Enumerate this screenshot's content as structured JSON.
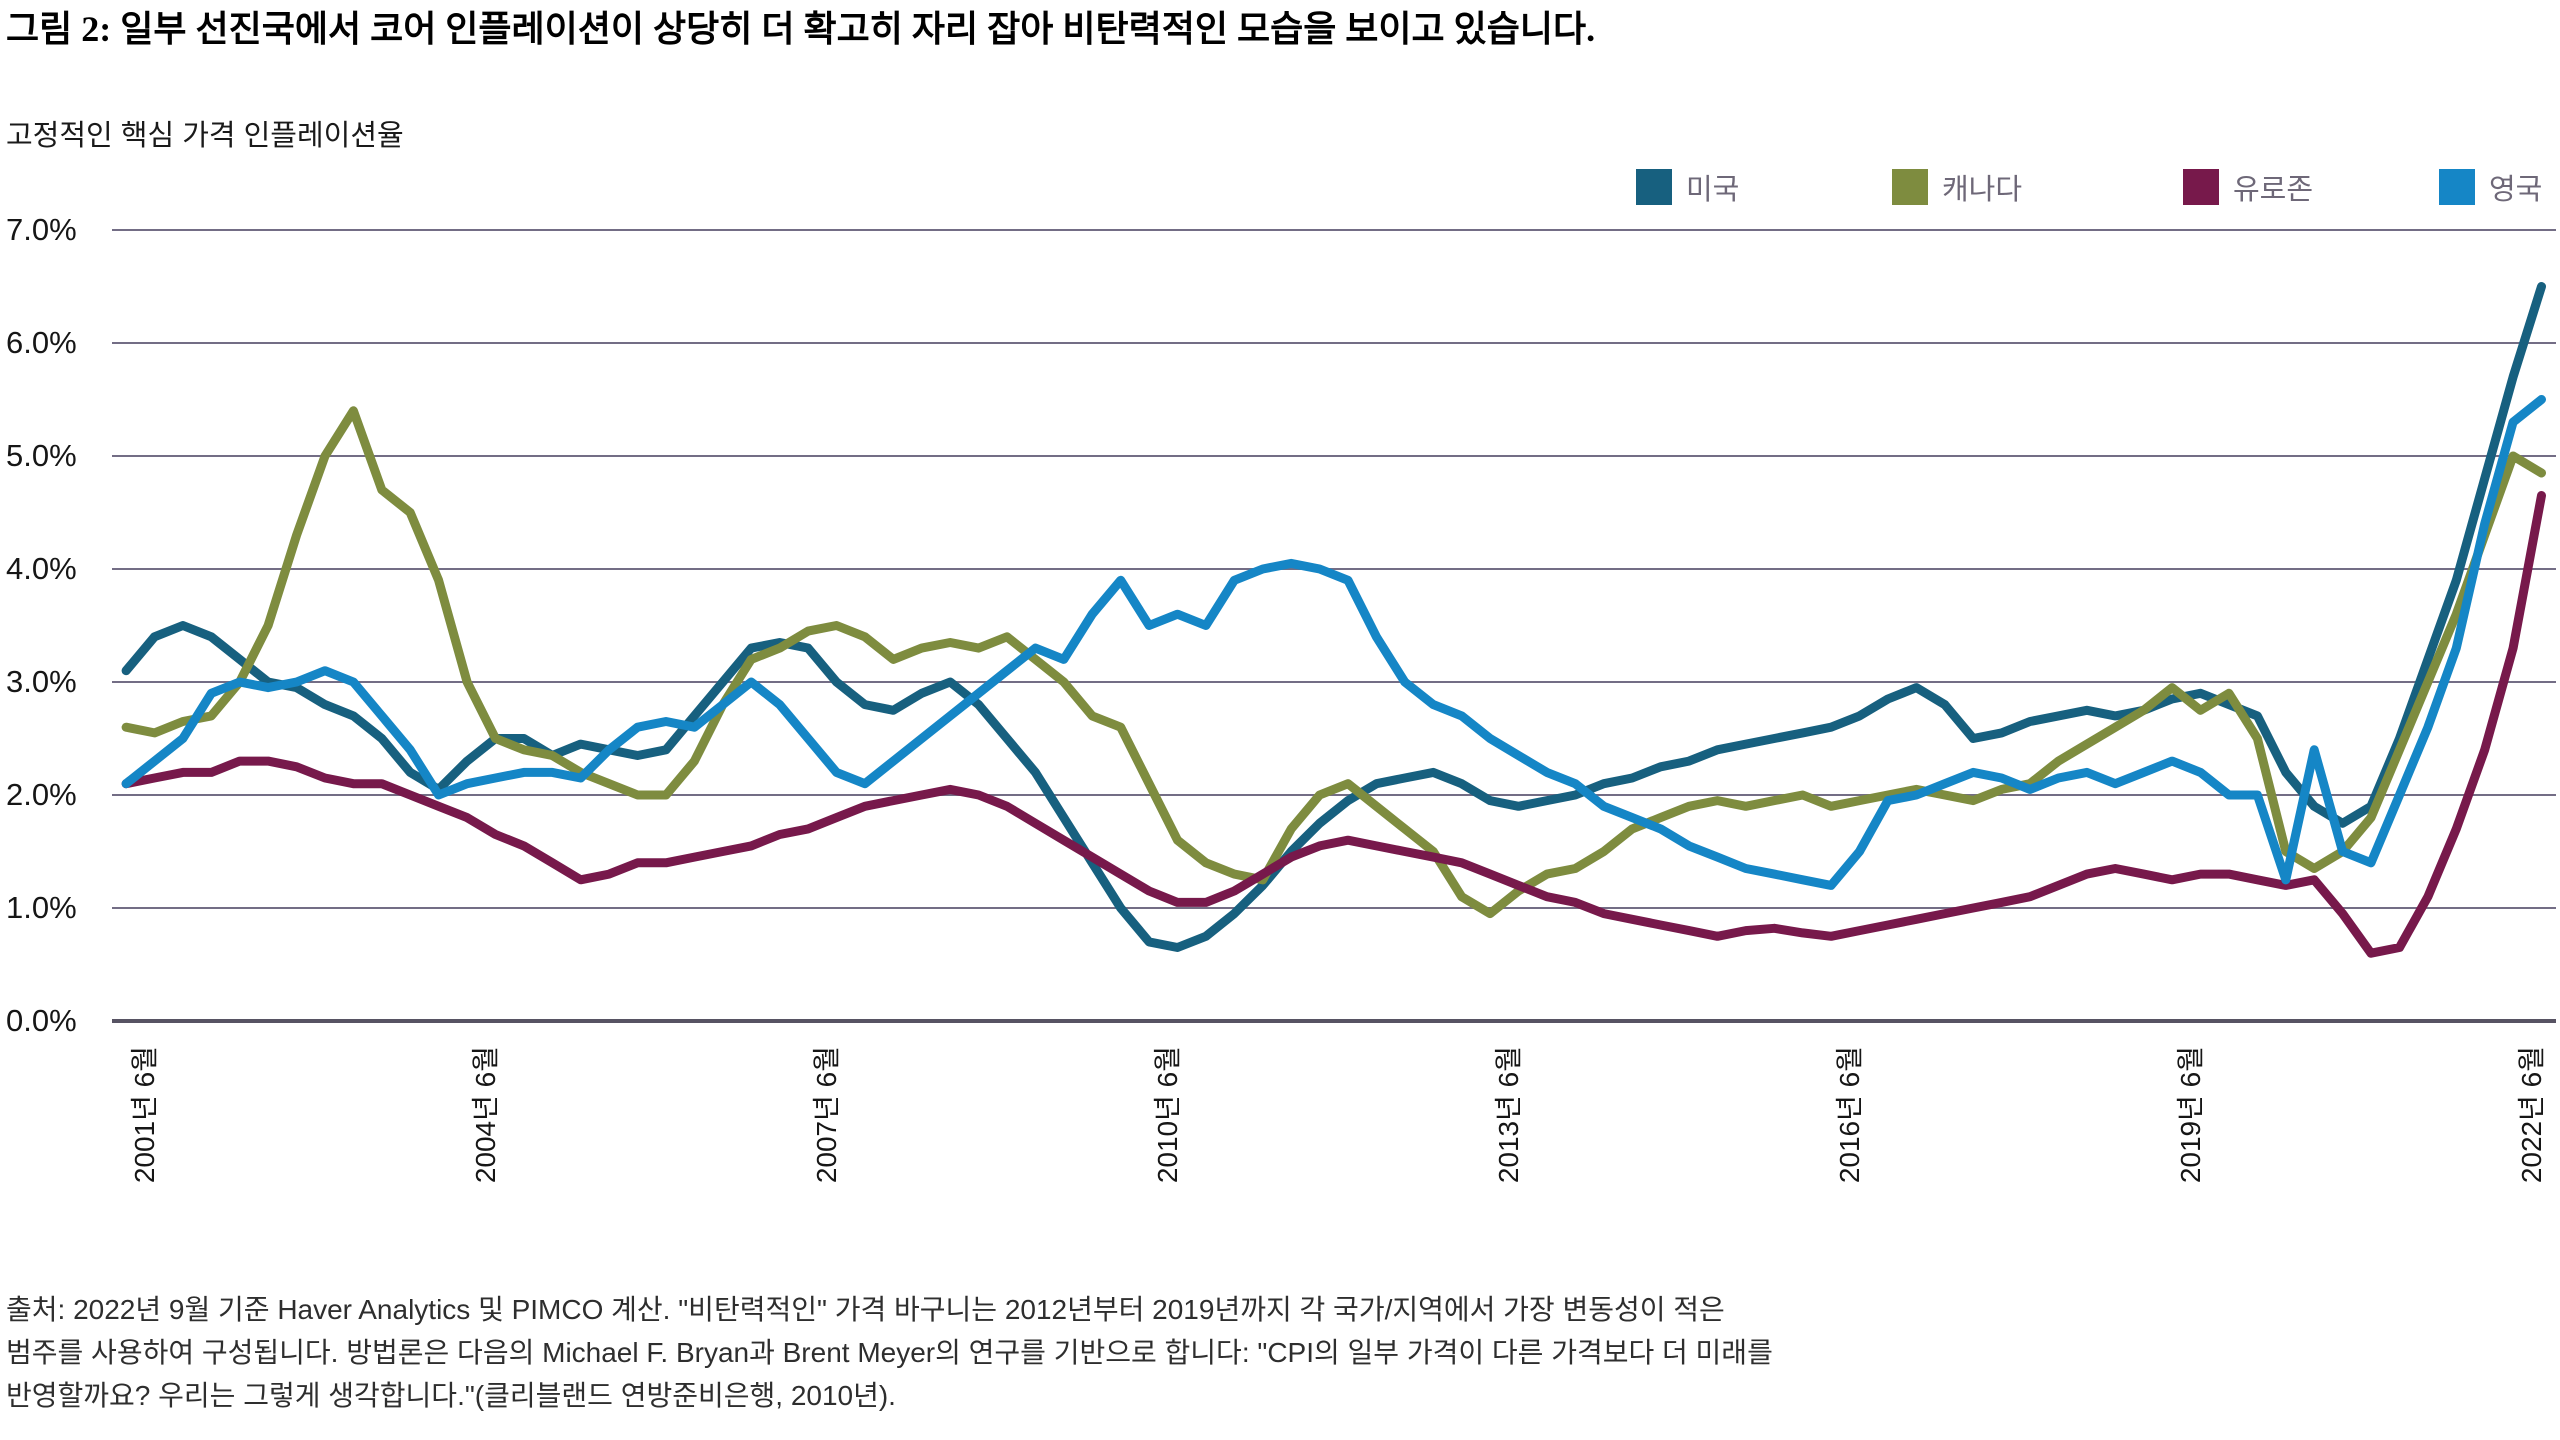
{
  "title": "그림 2: 일부 선진국에서 코어 인플레이션이 상당히 더 확고히 자리 잡아 비탄력적인 모습을 보이고 있습니다.",
  "subtitle": "고정적인 핵심 가격 인플레이션율",
  "legend": {
    "position": "top-right",
    "items": [
      {
        "label": "미국",
        "color": "#17607f"
      },
      {
        "label": "캐나다",
        "color": "#7e8c3f"
      },
      {
        "label": "유로존",
        "color": "#77194b"
      },
      {
        "label": "영국",
        "color": "#1586c6"
      }
    ]
  },
  "y_axis": {
    "ticks": [
      {
        "label": "7.0%",
        "value": 7
      },
      {
        "label": "6.0%",
        "value": 6
      },
      {
        "label": "5.0%",
        "value": 5
      },
      {
        "label": "4.0%",
        "value": 4
      },
      {
        "label": "3.0%",
        "value": 3
      },
      {
        "label": "2.0%",
        "value": 2
      },
      {
        "label": "1.0%",
        "value": 1
      },
      {
        "label": "0.0%",
        "value": 0
      }
    ]
  },
  "x_axis": {
    "ticks": [
      {
        "label": "2001년 6월",
        "year": 2001.4167
      },
      {
        "label": "2004년 6월",
        "year": 2004.4167
      },
      {
        "label": "2007년 6월",
        "year": 2007.4167
      },
      {
        "label": "2010년 6월",
        "year": 2010.4167
      },
      {
        "label": "2013년 6월",
        "year": 2013.4167
      },
      {
        "label": "2016년 6월",
        "year": 2016.4167
      },
      {
        "label": "2019년 6월",
        "year": 2019.4167
      },
      {
        "label": "2022년 6월",
        "year": 2022.4167
      }
    ]
  },
  "footer": {
    "lines": [
      "출처: 2022년 9월 기준 Haver Analytics 및 PIMCO 계산. \"비탄력적인\" 가격 바구니는 2012년부터 2019년까지 각 국가/지역에서 가장 변동성이 적은",
      "범주를 사용하여 구성됩니다. 방법론은 다음의 Michael F. Bryan과 Brent Meyer의 연구를 기반으로 합니다: \"CPI의 일부 가격이 다른 가격보다 더 미래를",
      "반영할까요? 우리는 그렇게 생각합니다.\"(클리블랜드 연방준비은행, 2010년)."
    ]
  },
  "chart_data": {
    "type": "line",
    "title": "그림 2: 일부 선진국에서 코어 인플레이션이 상당히 더 확고히 자리 잡아 비탄력적인 모습을 보이고 있습니다.",
    "subtitle": "고정적인 핵심 가격 인플레이션율",
    "unit": "%",
    "grid": "on",
    "legend_position": "top-right",
    "ylim": [
      0,
      7
    ],
    "y_tick_labels": [
      "7.0%",
      "6.0%",
      "5.0%",
      "4.0%",
      "3.0%",
      "2.0%",
      "1.0%",
      "0.0%"
    ],
    "x_tick_labels": [
      "2001년 6월",
      "2004년 6월",
      "2007년 6월",
      "2010년 6월",
      "2013년 6월",
      "2016년 6월",
      "2019년 6월",
      "2022년 6월"
    ],
    "x_years": [
      2001.25,
      2001.5,
      2001.75,
      2002,
      2002.25,
      2002.5,
      2002.75,
      2003,
      2003.25,
      2003.5,
      2003.75,
      2004,
      2004.25,
      2004.5,
      2004.75,
      2005,
      2005.25,
      2005.5,
      2005.75,
      2006,
      2006.25,
      2006.5,
      2006.75,
      2007,
      2007.25,
      2007.5,
      2007.75,
      2008,
      2008.25,
      2008.5,
      2008.75,
      2009,
      2009.25,
      2009.5,
      2009.75,
      2010,
      2010.25,
      2010.5,
      2010.75,
      2011,
      2011.25,
      2011.5,
      2011.75,
      2012,
      2012.25,
      2012.5,
      2012.75,
      2013,
      2013.25,
      2013.5,
      2013.75,
      2014,
      2014.25,
      2014.5,
      2014.75,
      2015,
      2015.25,
      2015.5,
      2015.75,
      2016,
      2016.25,
      2016.5,
      2016.75,
      2017,
      2017.25,
      2017.5,
      2017.75,
      2018,
      2018.25,
      2018.5,
      2018.75,
      2019,
      2019.25,
      2019.5,
      2019.75,
      2020,
      2020.25,
      2020.5,
      2020.75,
      2021,
      2021.25,
      2021.5,
      2021.75,
      2022,
      2022.25,
      2022.5
    ],
    "series": [
      {
        "name": "미국",
        "color": "#17607f",
        "values": [
          3.1,
          3.4,
          3.5,
          3.4,
          3.2,
          3.0,
          2.95,
          2.8,
          2.7,
          2.5,
          2.2,
          2.05,
          2.3,
          2.5,
          2.5,
          2.35,
          2.45,
          2.4,
          2.35,
          2.4,
          2.7,
          3.0,
          3.3,
          3.35,
          3.3,
          3.0,
          2.8,
          2.75,
          2.9,
          3.0,
          2.8,
          2.5,
          2.2,
          1.8,
          1.4,
          1.0,
          0.7,
          0.65,
          0.75,
          0.95,
          1.2,
          1.5,
          1.75,
          1.95,
          2.1,
          2.15,
          2.2,
          2.1,
          1.95,
          1.9,
          1.95,
          2.0,
          2.1,
          2.15,
          2.25,
          2.3,
          2.4,
          2.45,
          2.5,
          2.55,
          2.6,
          2.7,
          2.85,
          2.95,
          2.8,
          2.5,
          2.55,
          2.65,
          2.7,
          2.75,
          2.7,
          2.75,
          2.85,
          2.9,
          2.8,
          2.7,
          2.2,
          1.9,
          1.75,
          1.9,
          2.5,
          3.2,
          3.9,
          4.8,
          5.7,
          6.5
        ]
      },
      {
        "name": "캐나다",
        "color": "#7e8c3f",
        "values": [
          2.6,
          2.55,
          2.65,
          2.7,
          3.0,
          3.5,
          4.3,
          5.0,
          5.4,
          4.7,
          4.5,
          3.9,
          3.0,
          2.5,
          2.4,
          2.35,
          2.2,
          2.1,
          2.0,
          2.0,
          2.3,
          2.8,
          3.2,
          3.3,
          3.45,
          3.5,
          3.4,
          3.2,
          3.3,
          3.35,
          3.3,
          3.4,
          3.2,
          3.0,
          2.7,
          2.6,
          2.1,
          1.6,
          1.4,
          1.3,
          1.25,
          1.7,
          2.0,
          2.1,
          1.9,
          1.7,
          1.5,
          1.1,
          0.95,
          1.15,
          1.3,
          1.35,
          1.5,
          1.7,
          1.8,
          1.9,
          1.95,
          1.9,
          1.95,
          2.0,
          1.9,
          1.95,
          2.0,
          2.05,
          2.0,
          1.95,
          2.05,
          2.1,
          2.3,
          2.45,
          2.6,
          2.75,
          2.95,
          2.75,
          2.9,
          2.5,
          1.5,
          1.35,
          1.5,
          1.8,
          2.4,
          3.0,
          3.6,
          4.3,
          5.0,
          4.85
        ]
      },
      {
        "name": "유로존",
        "color": "#77194b",
        "values": [
          2.1,
          2.15,
          2.2,
          2.2,
          2.3,
          2.3,
          2.25,
          2.15,
          2.1,
          2.1,
          2.0,
          1.9,
          1.8,
          1.65,
          1.55,
          1.4,
          1.25,
          1.3,
          1.4,
          1.4,
          1.45,
          1.5,
          1.55,
          1.65,
          1.7,
          1.8,
          1.9,
          1.95,
          2.0,
          2.05,
          2.0,
          1.9,
          1.75,
          1.6,
          1.45,
          1.3,
          1.15,
          1.05,
          1.05,
          1.15,
          1.3,
          1.45,
          1.55,
          1.6,
          1.55,
          1.5,
          1.45,
          1.4,
          1.3,
          1.2,
          1.1,
          1.05,
          0.95,
          0.9,
          0.85,
          0.8,
          0.75,
          0.8,
          0.82,
          0.78,
          0.75,
          0.8,
          0.85,
          0.9,
          0.95,
          1.0,
          1.05,
          1.1,
          1.2,
          1.3,
          1.35,
          1.3,
          1.25,
          1.3,
          1.3,
          1.25,
          1.2,
          1.25,
          0.95,
          0.6,
          0.65,
          1.1,
          1.7,
          2.4,
          3.3,
          4.65
        ]
      },
      {
        "name": "영국",
        "color": "#1586c6",
        "values": [
          2.1,
          2.3,
          2.5,
          2.9,
          3.0,
          2.95,
          3.0,
          3.1,
          3.0,
          2.7,
          2.4,
          2.0,
          2.1,
          2.15,
          2.2,
          2.2,
          2.15,
          2.4,
          2.6,
          2.65,
          2.6,
          2.8,
          3.0,
          2.8,
          2.5,
          2.2,
          2.1,
          2.3,
          2.5,
          2.7,
          2.9,
          3.1,
          3.3,
          3.2,
          3.6,
          3.9,
          3.5,
          3.6,
          3.5,
          3.9,
          4.0,
          4.05,
          4.0,
          3.9,
          3.4,
          3.0,
          2.8,
          2.7,
          2.5,
          2.35,
          2.2,
          2.1,
          1.9,
          1.8,
          1.7,
          1.55,
          1.45,
          1.35,
          1.3,
          1.25,
          1.2,
          1.5,
          1.95,
          2.0,
          2.1,
          2.2,
          2.15,
          2.05,
          2.15,
          2.2,
          2.1,
          2.2,
          2.3,
          2.2,
          2.0,
          2.0,
          1.25,
          2.4,
          1.5,
          1.4,
          2.0,
          2.6,
          3.3,
          4.4,
          5.3,
          5.5
        ]
      }
    ]
  }
}
